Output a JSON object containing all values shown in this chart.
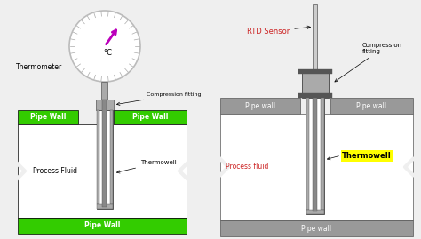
{
  "bg_color": "#efefef",
  "green_color": "#33cc00",
  "gray_wall": "#999999",
  "dark_gray": "#555555",
  "pipe_gray": "#aaaaaa",
  "med_gray": "#888888",
  "white": "#ffffff",
  "black": "#000000",
  "red_label": "#cc2222",
  "magenta": "#bb00bb",
  "yellow": "#ffff00",
  "left": {
    "thermometer": "Thermometer",
    "compression": "Compression fitting",
    "pw_left": "Pipe Wall",
    "pw_right": "Pipe Wall",
    "process_fluid": "Process Fluid",
    "thermowell": "Thermowell",
    "pw_bottom": "Pipe Wall"
  },
  "right": {
    "rtd_sensor": "RTD Sensor",
    "compression": "Compression\nfitting",
    "pw_left": "Pipe wall",
    "pw_right": "Pipe wall",
    "process_fluid": "Process fluid",
    "thermowell": "Thermowell",
    "pw_bottom": "Pipe wall"
  }
}
